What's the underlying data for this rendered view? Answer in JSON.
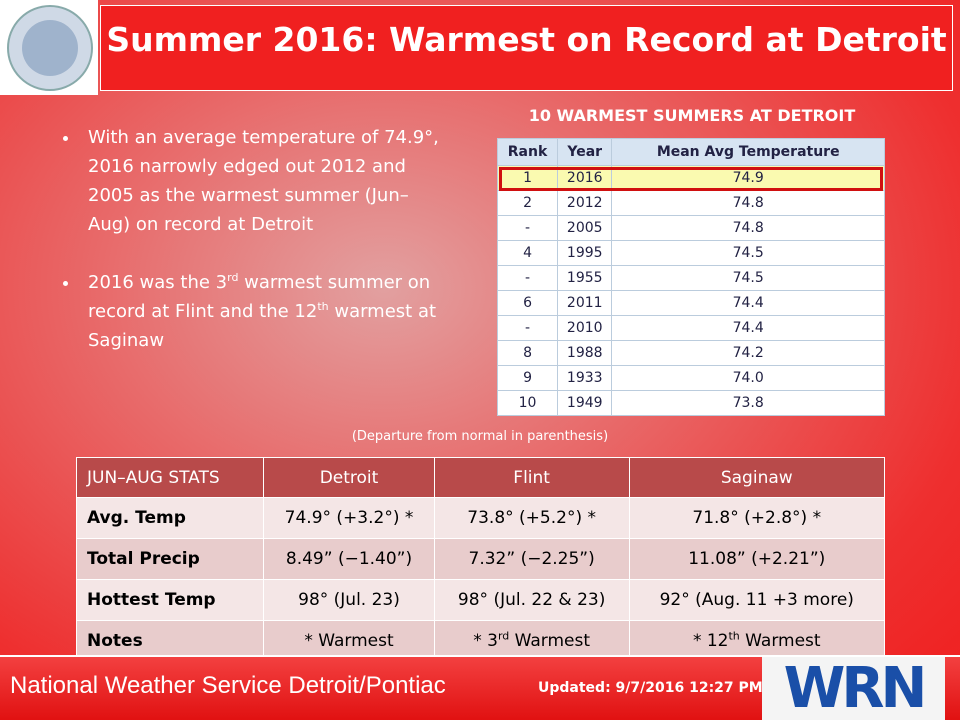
{
  "header": {
    "title": "Summer 2016: Warmest on Record at Detroit",
    "logo_right": "WRN"
  },
  "bullets": [
    [
      "With an average temperature of 74.9°, 2016 narrowly edged out 2012 and 2005 as the warmest summer (Jun–Aug) on record at Detroit"
    ],
    [
      "2016 was the 3",
      "rd",
      " warmest summer on record at Flint and the 12",
      "th",
      " warmest at Saginaw"
    ]
  ],
  "rank_table": {
    "title": "10 WARMEST SUMMERS AT DETROIT",
    "columns": [
      "Rank",
      "Year",
      "Mean Avg Temperature"
    ],
    "rows": [
      [
        "1",
        "2016",
        "74.9"
      ],
      [
        "2",
        "2012",
        "74.8"
      ],
      [
        "-",
        "2005",
        "74.8"
      ],
      [
        "4",
        "1995",
        "74.5"
      ],
      [
        "-",
        "1955",
        "74.5"
      ],
      [
        "6",
        "2011",
        "74.4"
      ],
      [
        "-",
        "2010",
        "74.4"
      ],
      [
        "8",
        "1988",
        "74.2"
      ],
      [
        "9",
        "1933",
        "74.0"
      ],
      [
        "10",
        "1949",
        "73.8"
      ]
    ]
  },
  "note": "(Departure from normal in parenthesis)",
  "stats_table": {
    "columns": [
      "JUN–AUG STATS",
      "Detroit",
      "Flint",
      "Saginaw"
    ],
    "rows": [
      [
        "Avg. Temp",
        "74.9° (+3.2°) *",
        "73.8° (+5.2°) *",
        "71.8° (+2.8°) *"
      ],
      [
        "Total Precip",
        "8.49” (−1.40”)",
        "7.32” (−2.25”)",
        "11.08” (+2.21”)"
      ],
      [
        "Hottest Temp",
        "98° (Jul. 23)",
        "98° (Jul. 22 & 23)",
        "92° (Aug. 11 +3 more)"
      ],
      [
        "Notes",
        "* Warmest",
        [
          "* 3",
          "rd",
          " Warmest"
        ],
        [
          "* 12",
          "th",
          " Warmest"
        ]
      ]
    ]
  },
  "footer": {
    "office": "National Weather Service Detroit/Pontiac",
    "updated": "Updated: 9/7/2016 12:27 PM"
  }
}
